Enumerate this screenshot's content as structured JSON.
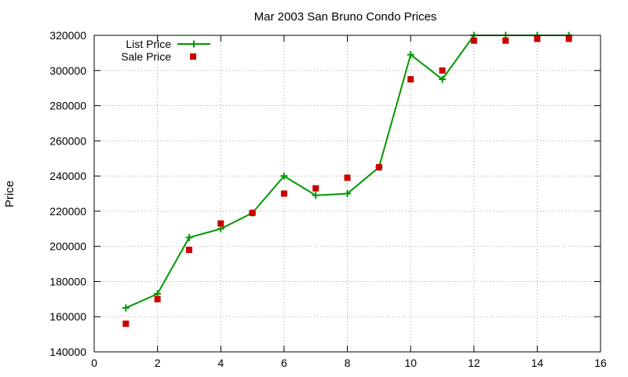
{
  "chart_data": {
    "type": "line",
    "title": "Mar 2003 San Bruno Condo Prices",
    "xlabel": "",
    "ylabel": "Price",
    "xlim": [
      0,
      16
    ],
    "ylim": [
      140000,
      320000
    ],
    "xticks": [
      0,
      2,
      4,
      6,
      8,
      10,
      12,
      14,
      16
    ],
    "yticks": [
      140000,
      160000,
      180000,
      200000,
      220000,
      240000,
      260000,
      280000,
      300000,
      320000
    ],
    "grid": true,
    "legend_position": "top-left",
    "series": [
      {
        "name": "List Price",
        "style": "line-plus",
        "color": "#009900",
        "x": [
          1,
          2,
          3,
          4,
          5,
          6,
          7,
          8,
          9,
          10,
          11,
          12,
          13,
          14,
          15
        ],
        "y": [
          165000,
          173000,
          205000,
          210000,
          219000,
          240000,
          229000,
          230000,
          245000,
          309000,
          295000,
          320000,
          320000,
          320000,
          320000
        ]
      },
      {
        "name": "Sale Price",
        "style": "square",
        "color": "#cc0000",
        "x": [
          1,
          2,
          3,
          4,
          5,
          6,
          7,
          8,
          9,
          10,
          11,
          12,
          13,
          14,
          15
        ],
        "y": [
          156000,
          170000,
          198000,
          213000,
          219000,
          230000,
          233000,
          239000,
          245000,
          295000,
          300000,
          317000,
          317000,
          318000,
          318000
        ]
      }
    ]
  }
}
